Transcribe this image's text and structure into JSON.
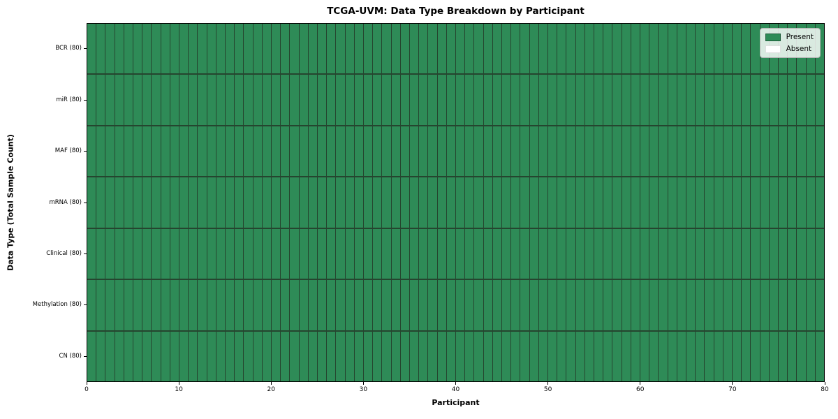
{
  "chart_data": {
    "type": "heatmap",
    "title": "TCGA-UVM: Data Type Breakdown by Participant",
    "xlabel": "Participant",
    "ylabel": "Data Type (Total Sample Count)",
    "xlim": [
      0,
      80
    ],
    "x_ticks": [
      0,
      10,
      20,
      30,
      40,
      50,
      60,
      70,
      80
    ],
    "n_participants": 80,
    "grid": false,
    "legend_position": "upper right",
    "legend": [
      {
        "label": "Present",
        "color": "#2e8b57"
      },
      {
        "label": "Absent",
        "color": "#ffffff"
      }
    ],
    "rows": [
      {
        "label": "BCR (80)",
        "data_type": "BCR",
        "total_samples": 80,
        "present_participants": 80,
        "absent_participants": 0
      },
      {
        "label": "miR (80)",
        "data_type": "miR",
        "total_samples": 80,
        "present_participants": 80,
        "absent_participants": 0
      },
      {
        "label": "MAF (80)",
        "data_type": "MAF",
        "total_samples": 80,
        "present_participants": 80,
        "absent_participants": 0
      },
      {
        "label": "mRNA (80)",
        "data_type": "mRNA",
        "total_samples": 80,
        "present_participants": 80,
        "absent_participants": 0
      },
      {
        "label": "Clinical (80)",
        "data_type": "Clinical",
        "total_samples": 80,
        "present_participants": 80,
        "absent_participants": 0
      },
      {
        "label": "Methylation (80)",
        "data_type": "Methylation",
        "total_samples": 80,
        "present_participants": 80,
        "absent_participants": 0
      },
      {
        "label": "CN (80)",
        "data_type": "CN",
        "total_samples": 80,
        "present_participants": 80,
        "absent_participants": 0
      }
    ],
    "colors": {
      "present": "#2e8b57",
      "absent": "#ffffff",
      "cell_edge": "#25452f",
      "axis": "#000000",
      "legend_border": "#b5b5b5"
    }
  }
}
